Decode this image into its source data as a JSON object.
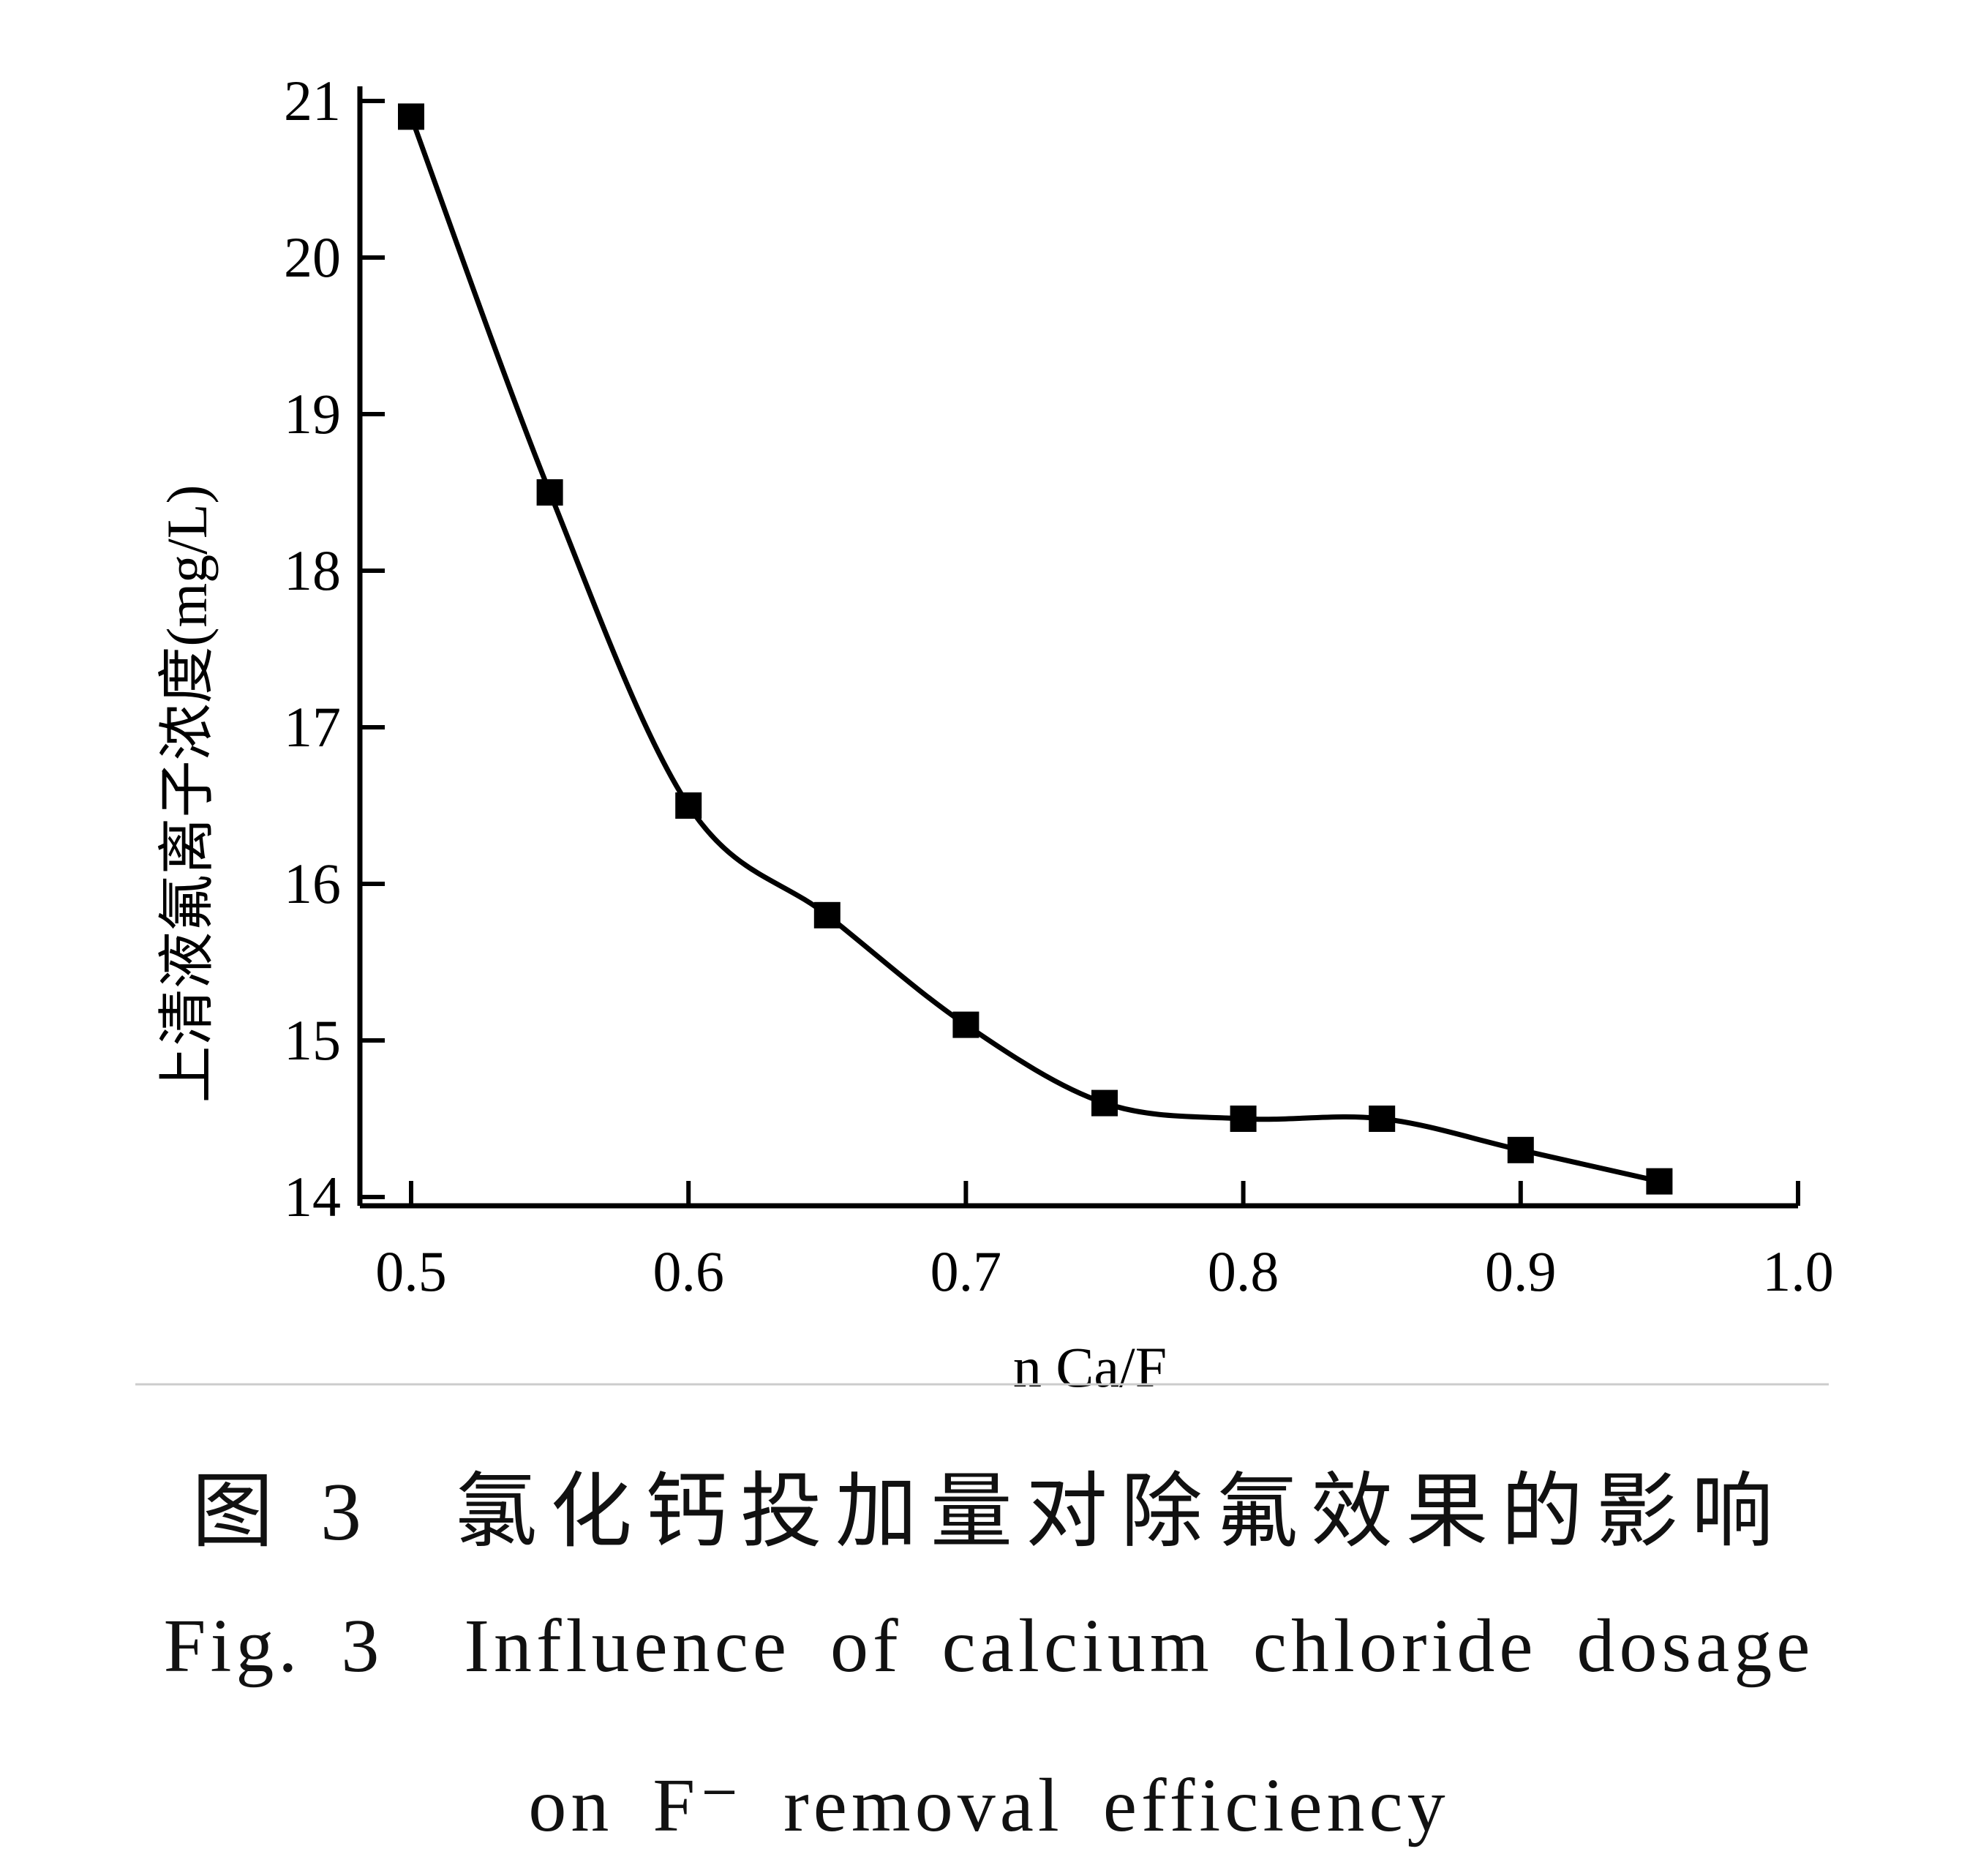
{
  "chart_data": {
    "type": "line",
    "x": [
      0.5,
      0.55,
      0.6,
      0.65,
      0.7,
      0.75,
      0.8,
      0.85,
      0.9,
      0.95
    ],
    "series": [
      {
        "values": [
          20.9,
          18.5,
          16.5,
          15.8,
          15.1,
          14.6,
          14.5,
          14.5,
          14.3,
          14.1
        ]
      }
    ],
    "xlabel": "n Ca/F",
    "ylabel": "上清液氟离子浓度(mg/L)",
    "xlim": [
      0.5,
      1.0
    ],
    "ylim": [
      14,
      21
    ],
    "x_ticks": [
      "0.5",
      "0.6",
      "0.7",
      "0.8",
      "0.9",
      "1.0"
    ],
    "y_ticks": [
      "14",
      "15",
      "16",
      "17",
      "18",
      "19",
      "20",
      "21"
    ],
    "marker": "square",
    "smoothed_line": true,
    "grid": false,
    "colors": {
      "line": "#000000",
      "marker": "#000000",
      "separator": "#cccccc"
    }
  },
  "caption": {
    "zh_label": "图 3",
    "zh_text": "氯化钙投加量对除氟效果的影响",
    "en_label": "Fig. 3",
    "en_line1": "Influence of calcium chloride dosage",
    "en_line2": "on F⁻ removal efficiency"
  }
}
